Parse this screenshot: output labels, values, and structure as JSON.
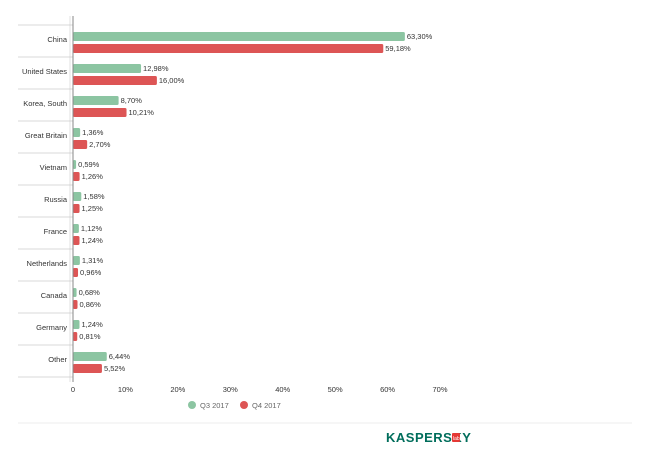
{
  "chart_data": {
    "type": "bar",
    "orientation": "horizontal",
    "categories": [
      "China",
      "United States",
      "Korea, South",
      "Great Britain",
      "Vietnam",
      "Russia",
      "France",
      "Netherlands",
      "Canada",
      "Germany",
      "Other"
    ],
    "series": [
      {
        "name": "Q3 2017",
        "color": "#8cc5a2",
        "values": [
          63.3,
          12.98,
          8.7,
          1.36,
          0.59,
          1.58,
          1.12,
          1.31,
          0.68,
          1.24,
          6.44
        ],
        "labels": [
          "63,30%",
          "12,98%",
          "8,70%",
          "1,36%",
          "0,59%",
          "1,58%",
          "1,12%",
          "1,31%",
          "0,68%",
          "1,24%",
          "6,44%"
        ]
      },
      {
        "name": "Q4 2017",
        "color": "#dd5555",
        "values": [
          59.18,
          16.0,
          10.21,
          2.7,
          1.26,
          1.25,
          1.24,
          0.96,
          0.86,
          0.81,
          5.52
        ],
        "labels": [
          "59,18%",
          "16,00%",
          "10,21%",
          "2,70%",
          "1,26%",
          "1,25%",
          "1,24%",
          "0,96%",
          "0,86%",
          "0,81%",
          "5,52%"
        ]
      }
    ],
    "xlim": [
      0,
      70
    ],
    "xticks": [
      0,
      10,
      20,
      30,
      40,
      50,
      60,
      70
    ],
    "xtick_labels": [
      "0",
      "10%",
      "20%",
      "30%",
      "40%",
      "50%",
      "60%",
      "70%"
    ],
    "grid": "horizontal separators",
    "legend_position": "bottom",
    "title": "",
    "xlabel": "",
    "ylabel": ""
  },
  "logo": {
    "text": "KASPERSKY",
    "badge": "lab",
    "color": "#006d5b",
    "badge_color": "#e53935"
  }
}
